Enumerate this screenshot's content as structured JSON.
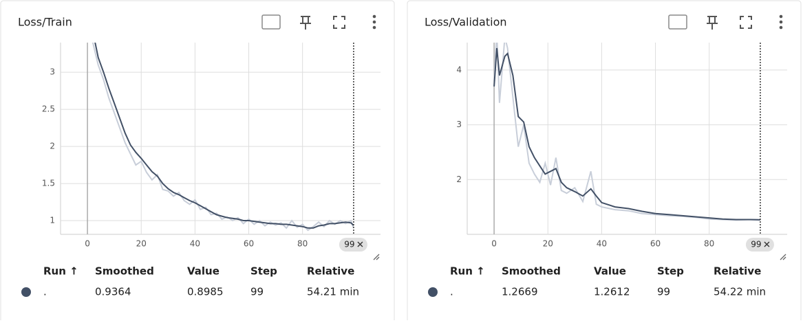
{
  "chart_data": [
    {
      "type": "line",
      "title": "Loss/Train",
      "x": [
        0,
        2,
        4,
        6,
        8,
        10,
        12,
        14,
        16,
        18,
        20,
        22,
        24,
        26,
        28,
        30,
        32,
        34,
        36,
        38,
        40,
        42,
        44,
        46,
        48,
        50,
        52,
        54,
        56,
        58,
        60,
        62,
        64,
        66,
        68,
        70,
        72,
        74,
        76,
        78,
        80,
        82,
        84,
        86,
        88,
        90,
        92,
        94,
        96,
        98,
        99
      ],
      "series": [
        {
          "name": "Smoothed",
          "color": "#425066",
          "values": [
            4.1,
            3.55,
            3.2,
            3.0,
            2.78,
            2.58,
            2.38,
            2.18,
            2.02,
            1.92,
            1.84,
            1.75,
            1.66,
            1.6,
            1.5,
            1.43,
            1.38,
            1.35,
            1.31,
            1.27,
            1.24,
            1.2,
            1.16,
            1.12,
            1.08,
            1.06,
            1.04,
            1.03,
            1.02,
            1.0,
            1.0,
            0.99,
            0.98,
            0.97,
            0.96,
            0.96,
            0.95,
            0.95,
            0.94,
            0.93,
            0.92,
            0.9,
            0.9,
            0.93,
            0.94,
            0.96,
            0.96,
            0.97,
            0.98,
            0.97,
            0.9364
          ]
        },
        {
          "name": "Value",
          "color": "#c8ced9",
          "values": [
            4.3,
            3.4,
            3.1,
            2.9,
            2.65,
            2.45,
            2.25,
            2.05,
            1.9,
            1.75,
            1.8,
            1.65,
            1.55,
            1.62,
            1.42,
            1.4,
            1.33,
            1.38,
            1.27,
            1.22,
            1.28,
            1.15,
            1.18,
            1.08,
            1.1,
            1.02,
            1.05,
            1.0,
            1.04,
            0.96,
            1.02,
            0.95,
            1.0,
            0.93,
            0.98,
            0.94,
            0.97,
            0.9,
            1.0,
            0.91,
            0.95,
            0.87,
            0.92,
            0.98,
            0.92,
            1.0,
            0.95,
            1.0,
            0.96,
            1.0,
            0.8985
          ]
        }
      ],
      "xlim": [
        -10,
        109
      ],
      "xticks": [
        0,
        20,
        40,
        60,
        80
      ],
      "ylim": [
        0.815,
        3.4
      ],
      "yticks": [
        1,
        1.5,
        2,
        2.5,
        3
      ],
      "grid": true,
      "table": {
        "run_header": "Run ↑",
        "step_header": "Step",
        "relative_header": "Relative",
        "run": ".",
        "relative": "54.21 min"
      }
    },
    {
      "type": "line",
      "title": "Loss/Validation",
      "x": [
        0,
        1,
        2,
        4,
        5,
        7,
        9,
        11,
        13,
        15,
        17,
        19,
        21,
        23,
        25,
        27,
        30,
        33,
        36,
        38,
        40,
        45,
        50,
        55,
        60,
        65,
        70,
        75,
        80,
        85,
        90,
        95,
        99
      ],
      "series": [
        {
          "name": "Smoothed",
          "color": "#425066",
          "values": [
            3.7,
            4.4,
            3.9,
            4.25,
            4.3,
            3.9,
            3.15,
            3.05,
            2.6,
            2.4,
            2.25,
            2.1,
            2.15,
            2.2,
            1.95,
            1.85,
            1.78,
            1.7,
            1.83,
            1.7,
            1.58,
            1.5,
            1.47,
            1.42,
            1.38,
            1.36,
            1.34,
            1.32,
            1.3,
            1.28,
            1.27,
            1.27,
            1.2669
          ]
        },
        {
          "name": "Value",
          "color": "#c8ced9",
          "values": [
            3.8,
            4.7,
            3.4,
            4.6,
            4.4,
            3.5,
            2.6,
            3.0,
            2.3,
            2.1,
            1.95,
            2.3,
            1.9,
            2.4,
            1.8,
            1.75,
            1.85,
            1.6,
            2.15,
            1.55,
            1.5,
            1.45,
            1.43,
            1.38,
            1.36,
            1.34,
            1.33,
            1.31,
            1.28,
            1.27,
            1.26,
            1.27,
            1.2612
          ]
        }
      ],
      "xlim": [
        -10,
        109
      ],
      "xticks": [
        0,
        20,
        40,
        60,
        80
      ],
      "ylim": [
        1.0,
        4.5
      ],
      "yticks": [
        2,
        3,
        4
      ],
      "grid": true,
      "table": {
        "run_header": "Run ↑",
        "step_header": "Step",
        "relative_header": "Relative",
        "run": ".",
        "relative": "54.22 min"
      }
    }
  ]
}
